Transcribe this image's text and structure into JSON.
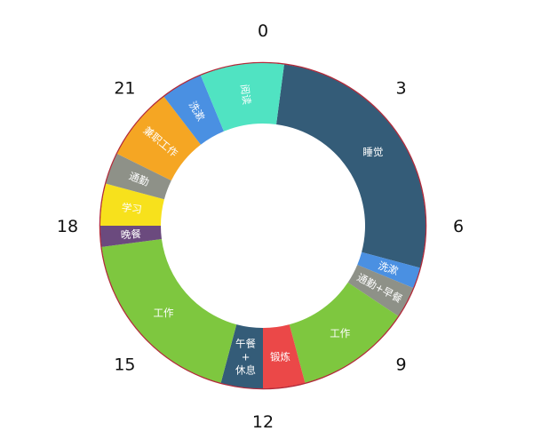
{
  "chart_data": {
    "type": "pie",
    "variant": "donut",
    "unit": "hours",
    "clock_start": 0,
    "clock_total": 24,
    "hour_ticks": [
      "0",
      "3",
      "6",
      "9",
      "12",
      "15",
      "18",
      "21"
    ],
    "segments": [
      {
        "label": "睡觉",
        "start": 0.5,
        "end": 7.0,
        "color": "#345c78"
      },
      {
        "label": "洗漱",
        "start": 7.0,
        "end": 7.5,
        "color": "#4a90e2"
      },
      {
        "label": "通勤+早餐",
        "start": 7.5,
        "end": 8.25,
        "color": "#8e9188"
      },
      {
        "label": "工作",
        "start": 8.25,
        "end": 11.0,
        "color": "#7ec73f"
      },
      {
        "label": "锻炼",
        "start": 11.0,
        "end": 12.0,
        "color": "#eb4848"
      },
      {
        "label": "午餐\n+\n休息",
        "start": 12.0,
        "end": 13.0,
        "color": "#345c78"
      },
      {
        "label": "工作",
        "start": 13.0,
        "end": 17.5,
        "color": "#7ec73f"
      },
      {
        "label": "晚餐",
        "start": 17.5,
        "end": 18.0,
        "color": "#6b4a7e"
      },
      {
        "label": "学习",
        "start": 18.0,
        "end": 19.0,
        "color": "#f7e11c"
      },
      {
        "label": "通勤",
        "start": 19.0,
        "end": 19.75,
        "color": "#8e9188"
      },
      {
        "label": "兼职工作",
        "start": 19.75,
        "end": 21.5,
        "color": "#f5a623"
      },
      {
        "label": "洗漱",
        "start": 21.5,
        "end": 22.5,
        "color": "#4a90e2"
      },
      {
        "label": "阅读",
        "start": 22.5,
        "end": 24.5,
        "color": "#50e3c2"
      }
    ],
    "outline_color": "#b22a3a",
    "background": "#ffffff"
  }
}
